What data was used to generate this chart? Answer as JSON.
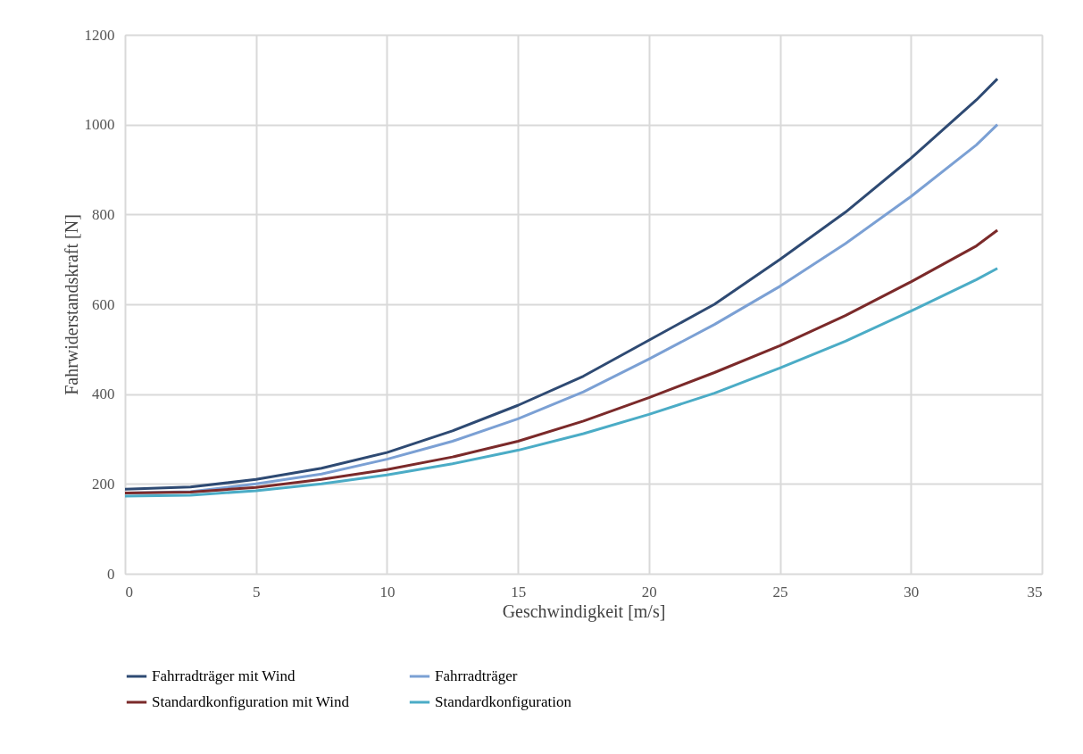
{
  "chart_data": {
    "type": "line",
    "xlabel": "Geschwindigkeit [m/s]",
    "ylabel": "Fahrwiderstandskraft [N]",
    "x": [
      0,
      2.5,
      5,
      7.5,
      10,
      12.5,
      15,
      17.5,
      20,
      22.5,
      25,
      27.5,
      30,
      32.5,
      33.3
    ],
    "series": [
      {
        "name": "Fahrradträger mit Wind",
        "color": "#2e4a73",
        "values": [
          188,
          193,
          210,
          235,
          270,
          318,
          375,
          440,
          520,
          600,
          700,
          805,
          925,
          1055,
          1102
        ]
      },
      {
        "name": "Fahrradträger",
        "color": "#7ba0d4",
        "values": [
          180,
          183,
          200,
          222,
          255,
          295,
          345,
          405,
          478,
          555,
          640,
          735,
          840,
          955,
          1000
        ]
      },
      {
        "name": "Standardkonfiguration mit Wind",
        "color": "#7b2a2a",
        "values": [
          180,
          182,
          192,
          210,
          232,
          260,
          295,
          340,
          392,
          448,
          508,
          575,
          650,
          730,
          765
        ]
      },
      {
        "name": "Standardkonfiguration",
        "color": "#4bacc6",
        "values": [
          173,
          175,
          185,
          200,
          220,
          245,
          275,
          312,
          355,
          402,
          458,
          518,
          585,
          655,
          680
        ]
      }
    ],
    "xlim": [
      0,
      35
    ],
    "xticks": [
      0,
      5,
      10,
      15,
      20,
      25,
      30,
      35
    ],
    "ylim": [
      0,
      1200
    ],
    "yticks": [
      0,
      200,
      400,
      600,
      800,
      1000,
      1200
    ],
    "grid": true,
    "legend": "bottom",
    "marker": "none",
    "line_style": "solid"
  }
}
